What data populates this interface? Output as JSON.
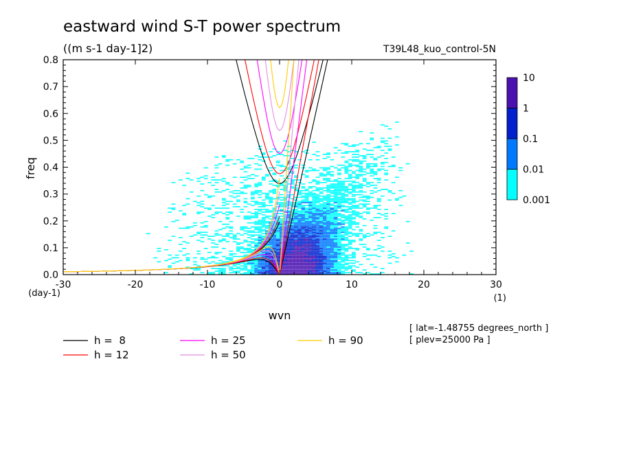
{
  "chart_data": {
    "type": "heatmap",
    "title": "eastward wind S-T power spectrum",
    "units_label": "((m s-1 day-1]2)",
    "case_label": "T39L48_kuo_control-5N",
    "xlabel": "wvn",
    "ylabel": "freq",
    "x_unit_label": "(1)",
    "y_unit_label": "(day-1)",
    "xlim": [
      -30,
      30
    ],
    "ylim": [
      0,
      0.8
    ],
    "x_ticks": [
      -30,
      -20,
      -10,
      0,
      10,
      20,
      30
    ],
    "y_ticks": [
      0.0,
      0.1,
      0.2,
      0.3,
      0.4,
      0.5,
      0.6,
      0.7,
      0.8
    ],
    "x_tick_labels": [
      "-30",
      "-20",
      "-10",
      "0",
      "10",
      "20",
      "30"
    ],
    "y_tick_labels": [
      "0.0",
      "0.1",
      "0.2",
      "0.3",
      "0.4",
      "0.5",
      "0.6",
      "0.7",
      "0.8"
    ],
    "colorbar": {
      "levels": [
        "0.001",
        "0.01",
        "0.1",
        "1",
        "10"
      ],
      "colors": [
        "#00ffff",
        "#0078ff",
        "#0020cd",
        "#4a10b0"
      ]
    },
    "power_regions": [
      {
        "level": "0.001-0.01",
        "description": "broad background band",
        "x": [
          -30,
          30
        ],
        "y": [
          0,
          0.65
        ]
      },
      {
        "level": "0.01-0.1",
        "x": [
          -5,
          9
        ],
        "y": [
          0,
          0.32
        ]
      },
      {
        "level": "0.1-1",
        "x": [
          -3,
          7
        ],
        "y": [
          0,
          0.15
        ]
      },
      {
        "level": "1-10",
        "x": [
          0,
          3
        ],
        "y": [
          0,
          0.04
        ]
      }
    ],
    "series": [
      {
        "name": "h =  8",
        "color": "#000000",
        "equivalent_depth": 8
      },
      {
        "name": "h = 12",
        "color": "#ff0000",
        "equivalent_depth": 12
      },
      {
        "name": "h = 25",
        "color": "#ff00ff",
        "equivalent_depth": 25
      },
      {
        "name": "h = 50",
        "color": "#e28ee2",
        "equivalent_depth": 50
      },
      {
        "name": "h = 90",
        "color": "#ffcc00",
        "equivalent_depth": 90
      }
    ],
    "annotations": [
      "[ lat=-1.48755 degrees_north ]",
      "[ plev=25000 Pa ]"
    ]
  }
}
